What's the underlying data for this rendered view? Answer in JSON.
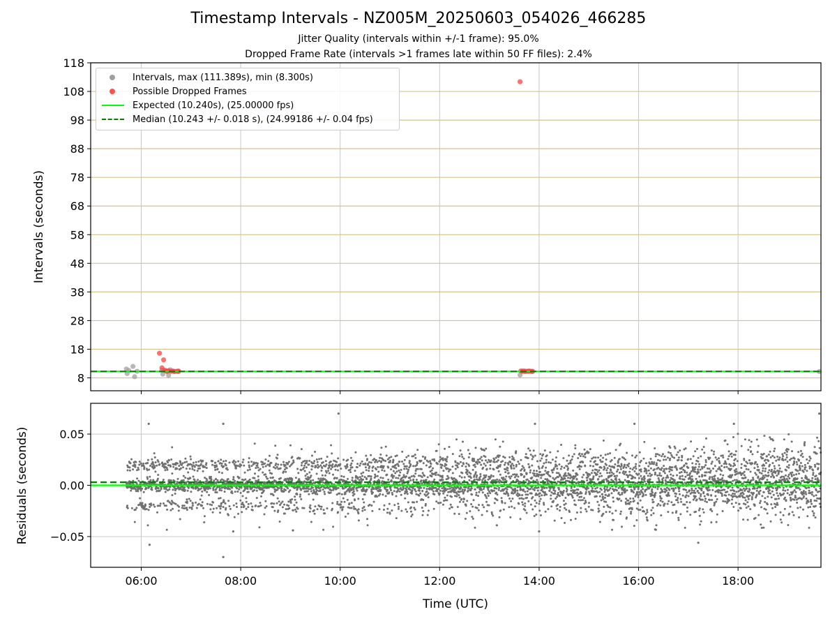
{
  "title": "Timestamp Intervals - NZ005M_20250603_054026_466285",
  "subtitle_lines": [
    "Jitter Quality (intervals within +/-1 frame): 95.0%",
    "Dropped Frame Rate (intervals >1 frames late within 50 FF files): 2.4%"
  ],
  "colors": {
    "intervals": "#a0a0a0",
    "dropped": "#ff4040",
    "expected": "#00ff00",
    "median": "#007f00",
    "residual_points": "#707070",
    "major_grid": "#d4c38a",
    "minor_grid": "#c8c8c8"
  },
  "chart_data": [
    {
      "type": "scatter",
      "panel": "intervals",
      "xlabel": "",
      "ylabel": "Intervals (seconds)",
      "xlim": [
        "04:59",
        "19:40"
      ],
      "ylim": [
        3.5,
        118
      ],
      "x_ticks": [
        "06:00",
        "08:00",
        "10:00",
        "12:00",
        "14:00",
        "16:00",
        "18:00"
      ],
      "y_ticks": [
        8,
        18,
        28,
        38,
        48,
        58,
        68,
        78,
        88,
        98,
        108,
        118
      ],
      "grid": true,
      "legend_position": "upper-left",
      "legend": [
        {
          "label": "Intervals, max (111.389s), min (8.300s)",
          "marker": "dot",
          "color": "#a0a0a0"
        },
        {
          "label": "Possible Dropped Frames",
          "marker": "dot",
          "color": "#ff4040"
        },
        {
          "label": "Expected (10.240s), (25.00000 fps)",
          "marker": "solid-line",
          "color": "#00ff00"
        },
        {
          "label": "Median (10.243 +/- 0.018 s), (24.99186 +/- 0.04 fps)",
          "marker": "dashed-line",
          "color": "#007f00"
        }
      ],
      "reference_lines": [
        {
          "name": "Expected",
          "y": 10.24,
          "style": "solid",
          "color": "#00ff00"
        },
        {
          "name": "Median",
          "y": 10.243,
          "style": "dashed",
          "color": "#007f00"
        }
      ],
      "series": [
        {
          "name": "Intervals",
          "color": "#a0a0a0",
          "points": [
            [
              "05:42",
              11.1
            ],
            [
              "05:43",
              9.5
            ],
            [
              "05:45",
              10.6
            ],
            [
              "05:50",
              12.0
            ],
            [
              "05:52",
              8.4
            ],
            [
              "05:55",
              10.3
            ],
            [
              "06:25",
              10.7
            ],
            [
              "06:26",
              9.3
            ],
            [
              "06:28",
              10.6
            ],
            [
              "06:31",
              10.2
            ],
            [
              "06:33",
              8.9
            ],
            [
              "06:35",
              10.8
            ],
            [
              "06:40",
              10.3
            ],
            [
              "06:45",
              10.2
            ],
            [
              "13:37",
              9.0
            ],
            [
              "13:40",
              10.4
            ],
            [
              "13:43",
              10.2
            ],
            [
              "13:47",
              10.3
            ],
            [
              "13:52",
              10.2
            ],
            [
              "19:38",
              10.2
            ]
          ]
        },
        {
          "name": "Possible Dropped Frames",
          "color": "#ff4040",
          "points": [
            [
              "06:22",
              16.6
            ],
            [
              "06:25",
              11.5
            ],
            [
              "06:27",
              14.3
            ],
            [
              "06:29",
              10.6
            ],
            [
              "06:31",
              10.3
            ],
            [
              "06:33",
              10.5
            ],
            [
              "06:36",
              10.3
            ],
            [
              "06:38",
              10.4
            ],
            [
              "06:40",
              10.2
            ],
            [
              "06:43",
              10.3
            ],
            [
              "06:45",
              10.4
            ],
            [
              "13:37",
              111.39
            ],
            [
              "13:38",
              10.4
            ],
            [
              "13:40",
              10.3
            ],
            [
              "13:42",
              10.4
            ],
            [
              "13:44",
              10.3
            ],
            [
              "13:46",
              10.3
            ],
            [
              "13:48",
              10.4
            ],
            [
              "13:50",
              10.3
            ],
            [
              "13:52",
              10.3
            ]
          ]
        }
      ]
    },
    {
      "type": "scatter",
      "panel": "residuals",
      "xlabel": "Time (UTC)",
      "ylabel": "Residuals (seconds)",
      "xlim": [
        "04:59",
        "19:40"
      ],
      "ylim": [
        -0.08,
        0.08
      ],
      "x_ticks": [
        "06:00",
        "08:00",
        "10:00",
        "12:00",
        "14:00",
        "16:00",
        "18:00"
      ],
      "y_ticks": [
        -0.05,
        0.0,
        0.05
      ],
      "y_tick_labels": [
        "−0.05",
        "0.00",
        "0.05"
      ],
      "grid": true,
      "reference_lines": [
        {
          "name": "Expected",
          "y": 0.0,
          "style": "solid",
          "color": "#00ff00"
        },
        {
          "name": "Median",
          "y": 0.003,
          "style": "dashed",
          "color": "#007f00"
        }
      ],
      "series": [
        {
          "name": "Residuals",
          "color": "#707070",
          "x_range": [
            "05:42",
            "19:40"
          ],
          "bands": [
            0.02,
            0.0,
            -0.02
          ],
          "band_spread_early": 0.003,
          "band_spread_late": 0.012,
          "points_count": 5000,
          "outliers": [
            [
              "06:09",
              0.06
            ],
            [
              "06:10",
              -0.058
            ],
            [
              "07:39",
              0.06
            ],
            [
              "07:39",
              -0.07
            ],
            [
              "07:51",
              -0.045
            ],
            [
              "09:03",
              -0.044
            ],
            [
              "09:58",
              0.07
            ],
            [
              "13:09",
              -0.039
            ],
            [
              "13:55",
              0.06
            ],
            [
              "14:00",
              -0.045
            ],
            [
              "15:55",
              0.06
            ],
            [
              "16:20",
              -0.043
            ],
            [
              "17:12",
              -0.056
            ],
            [
              "17:55",
              0.06
            ],
            [
              "19:38",
              0.07
            ]
          ]
        }
      ]
    }
  ]
}
